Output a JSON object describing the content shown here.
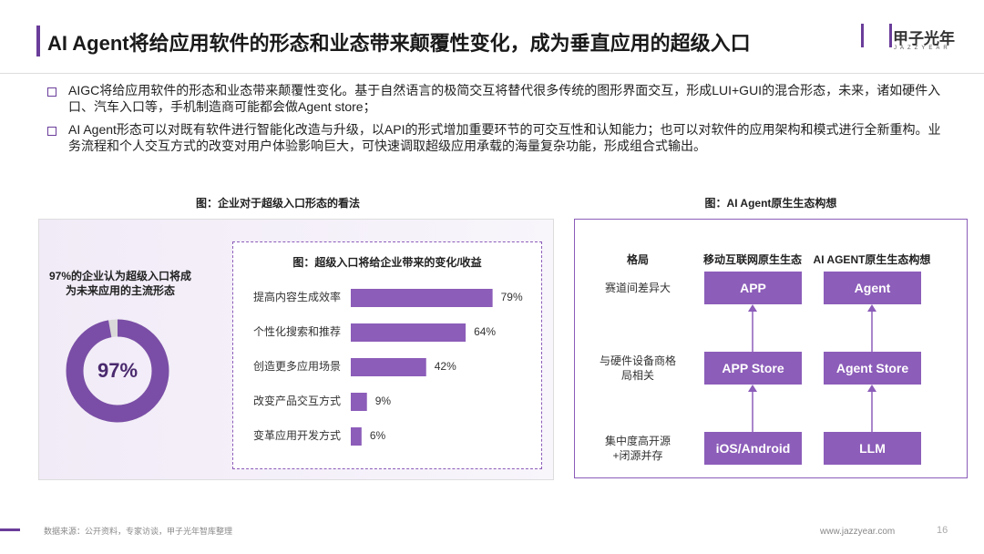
{
  "header": {
    "title": "AI Agent将给应用软件的形态和业态带来颠覆性变化，成为垂直应用的超级入口",
    "logo": "甲子光年",
    "logo_sub": "JAZZYEAR"
  },
  "bullets": [
    "AIGC将给应用软件的形态和业态带来颠覆性变化。基于自然语言的极简交互将替代很多传统的图形界面交互，形成LUI+GUI的混合形态，未来，诸如硬件入口、汽车入口等，手机制造商可能都会做Agent store；",
    "AI Agent形态可以对既有软件进行智能化改造与升级，以API的形式增加重要环节的可交互性和认知能力；也可以对软件的应用架构和模式进行全新重构。业务流程和个人交互方式的改变对用户体验影响巨大，可快速调取超级应用承载的海量复杂功能，形成组合式输出。"
  ],
  "chart_data": [
    {
      "type": "pie",
      "title": "图：企业对于超级入口形态的看法",
      "subtitle": "97%的企业认为超级入口将成为未来应用的主流形态",
      "values": [
        97
      ],
      "value_labels": [
        "97%"
      ],
      "color": "#7a4ea6"
    },
    {
      "type": "bar",
      "title": "图：超级入口将给企业带来的变化/收益",
      "orientation": "horizontal",
      "categories": [
        "提高内容生成效率",
        "个性化搜索和推荐",
        "创造更多应用场景",
        "改变产品交互方式",
        "变革应用开发方式"
      ],
      "values": [
        79,
        64,
        42,
        9,
        6
      ],
      "value_labels": [
        "79%",
        "64%",
        "42%",
        "9%",
        "6%"
      ],
      "color": "#8c5db9"
    }
  ],
  "diagram": {
    "title": "图：AI Agent原生生态构想",
    "columns": [
      "格局",
      "移动互联网原生生态",
      "AI AGENT原生生态构想"
    ],
    "rows": [
      {
        "label": "赛道间差异大",
        "mobile": "APP",
        "agent": "Agent"
      },
      {
        "label": "与硬件设备商格局相关",
        "mobile": "APP Store",
        "agent": "Agent Store"
      },
      {
        "label": "集中度高开源+闭源并存",
        "mobile": "iOS/Android",
        "agent": "LLM"
      }
    ]
  },
  "footer": {
    "source": "数据来源：公开资料，专家访谈，甲子光年智库整理",
    "url": "www.jazzyear.com",
    "page": "16"
  }
}
